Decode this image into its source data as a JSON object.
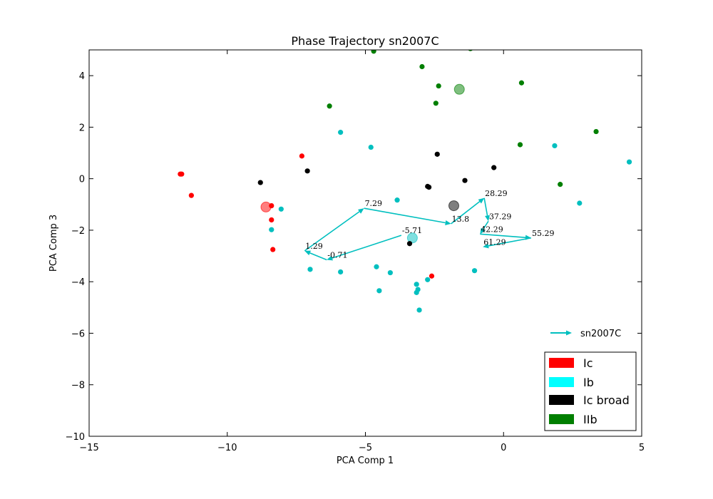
{
  "chart_data": {
    "type": "scatter",
    "title": "Phase Trajectory sn2007C",
    "xlabel": "PCA Comp 1",
    "ylabel": "PCA Comp 3",
    "xlim": [
      -15,
      5
    ],
    "ylim": [
      -10,
      5
    ],
    "xticks": [
      -15,
      -10,
      -5,
      0,
      5
    ],
    "yticks": [
      -10,
      -8,
      -6,
      -4,
      -2,
      0,
      2,
      4
    ],
    "xtick_labels": [
      "−15",
      "−10",
      "−5",
      "0",
      "5"
    ],
    "ytick_labels": [
      "−10",
      "−8",
      "−6",
      "−4",
      "−2",
      "0",
      "2",
      "4"
    ],
    "grid": false,
    "series": [
      {
        "name": "Ic",
        "color": "#ff0000",
        "points": [
          [
            -11.7,
            0.18
          ],
          [
            -11.65,
            0.18
          ],
          [
            -11.3,
            -0.65
          ],
          [
            -7.3,
            0.88
          ],
          [
            -8.4,
            -1.05
          ],
          [
            -8.4,
            -1.6
          ],
          [
            -8.35,
            -2.75
          ],
          [
            -2.6,
            -3.78
          ]
        ],
        "centroid": [
          -8.6,
          -1.1
        ]
      },
      {
        "name": "Ib",
        "color": "#00bfbf",
        "points": [
          [
            -5.9,
            1.8
          ],
          [
            -4.8,
            1.22
          ],
          [
            -8.05,
            -1.18
          ],
          [
            -8.4,
            -1.98
          ],
          [
            -3.85,
            -0.83
          ],
          [
            -7.0,
            -3.52
          ],
          [
            -5.9,
            -3.62
          ],
          [
            -4.6,
            -3.42
          ],
          [
            -4.1,
            -3.65
          ],
          [
            -4.5,
            -4.35
          ],
          [
            -3.15,
            -4.1
          ],
          [
            -3.1,
            -4.3
          ],
          [
            -3.15,
            -4.42
          ],
          [
            -2.75,
            -3.92
          ],
          [
            -3.05,
            -5.1
          ],
          [
            -1.05,
            -3.57
          ],
          [
            1.85,
            1.28
          ],
          [
            2.75,
            -0.95
          ],
          [
            4.55,
            0.65
          ]
        ],
        "centroid": [
          -3.3,
          -2.3
        ]
      },
      {
        "name": "Ic broad",
        "color": "#000000",
        "points": [
          [
            -8.8,
            -0.15
          ],
          [
            -7.1,
            0.3
          ],
          [
            -2.4,
            0.95
          ],
          [
            -2.75,
            -0.3
          ],
          [
            -2.7,
            -0.33
          ],
          [
            -1.4,
            -0.07
          ],
          [
            -0.35,
            0.43
          ],
          [
            -3.4,
            -2.52
          ]
        ],
        "centroid": [
          -1.8,
          -1.05
        ]
      },
      {
        "name": "IIb",
        "color": "#007f00",
        "points": [
          [
            -4.7,
            4.95
          ],
          [
            -1.2,
            5.05
          ],
          [
            -2.95,
            4.35
          ],
          [
            -2.35,
            3.6
          ],
          [
            -2.45,
            2.93
          ],
          [
            0.65,
            3.72
          ],
          [
            -6.3,
            2.82
          ],
          [
            0.6,
            1.32
          ],
          [
            3.35,
            1.83
          ],
          [
            2.05,
            -0.22
          ]
        ],
        "centroid": [
          -1.6,
          3.47
        ]
      }
    ],
    "trajectory": {
      "name": "sn2007C",
      "color": "#00bfbf",
      "points": [
        {
          "x": -3.7,
          "y": -2.2,
          "label": "-5.71"
        },
        {
          "x": -6.4,
          "y": -3.15,
          "label": "-0.71"
        },
        {
          "x": -7.2,
          "y": -2.8,
          "label": "1.29"
        },
        {
          "x": -5.05,
          "y": -1.15,
          "label": "7.29"
        },
        {
          "x": -1.9,
          "y": -1.75,
          "label": "13.8"
        },
        {
          "x": -0.7,
          "y": -0.75,
          "label": "28.29"
        },
        {
          "x": -0.55,
          "y": -1.65,
          "label": "37.29"
        },
        {
          "x": -0.85,
          "y": -2.15,
          "label": "42.29"
        },
        {
          "x": 1.0,
          "y": -2.3,
          "label": "55.29"
        },
        {
          "x": -0.75,
          "y": -2.65,
          "label": "61.29"
        }
      ]
    },
    "legend": {
      "placement": "lower-right",
      "entries": [
        "Ic",
        "Ib",
        "Ic broad",
        "IIb"
      ],
      "colors": [
        "#ff0000",
        "#00ffff",
        "#000000",
        "#007f00"
      ],
      "trajectory_entry": "sn2007C"
    }
  }
}
